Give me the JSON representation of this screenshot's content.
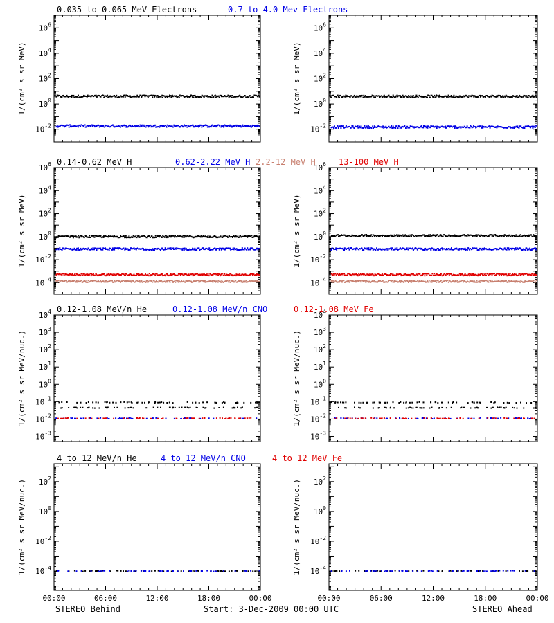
{
  "colors": {
    "black": "#000000",
    "blue": "#0000e6",
    "salmon": "#c88070",
    "red": "#e00000"
  },
  "footer": {
    "left": "STEREO Behind",
    "center": "Start:  3-Dec-2009 00:00 UTC",
    "right": "STEREO Ahead"
  },
  "chart_data": [
    {
      "type": "scatter",
      "scale": "log",
      "titles": [
        {
          "text": "0.035 to 0.065 MeV Electrons",
          "color": "#000000"
        },
        {
          "text": "0.7 to 4.0 Mev Electrons",
          "color": "#0000e6"
        }
      ],
      "ylabel": "1/(cm² s sr MeV)",
      "ylim_exp": [
        -3,
        7
      ],
      "yticks_exp": [
        -2,
        0,
        2,
        4,
        6
      ],
      "panels": [
        {
          "name": "STEREO Behind",
          "series": [
            {
              "color": "#000000",
              "level": 4.0
            },
            {
              "color": "#0000e6",
              "level": 0.018
            }
          ]
        },
        {
          "name": "STEREO Ahead",
          "series": [
            {
              "color": "#000000",
              "level": 4.0
            },
            {
              "color": "#0000e6",
              "level": 0.015
            }
          ]
        }
      ]
    },
    {
      "type": "scatter",
      "scale": "log",
      "titles": [
        {
          "text": "0.14-0.62 MeV H",
          "color": "#000000"
        },
        {
          "text": "0.62-2.22 MeV H",
          "color": "#0000e6"
        },
        {
          "text": "2.2-12 MeV H",
          "color": "#c88070"
        },
        {
          "text": "13-100 MeV H",
          "color": "#e00000"
        }
      ],
      "ylabel": "1/(cm² s sr MeV)",
      "ylim_exp": [
        -5,
        6
      ],
      "yticks_exp": [
        -4,
        -2,
        0,
        2,
        4,
        6
      ],
      "panels": [
        {
          "name": "STEREO Behind",
          "series": [
            {
              "color": "#000000",
              "level": 1.0
            },
            {
              "color": "#0000e6",
              "level": 0.085
            },
            {
              "color": "#c88070",
              "level": 0.00013
            },
            {
              "color": "#e00000",
              "level": 0.0005
            }
          ]
        },
        {
          "name": "STEREO Ahead",
          "series": [
            {
              "color": "#000000",
              "level": 1.2
            },
            {
              "color": "#0000e6",
              "level": 0.085
            },
            {
              "color": "#c88070",
              "level": 0.00013
            },
            {
              "color": "#e00000",
              "level": 0.0005
            }
          ]
        }
      ]
    },
    {
      "type": "scatter",
      "scale": "log",
      "titles": [
        {
          "text": "0.12-1.08 MeV/n He",
          "color": "#000000"
        },
        {
          "text": "0.12-1.08 MeV/n CNO",
          "color": "#0000e6"
        },
        {
          "text": "0.12-1.08 MeV Fe",
          "color": "#e00000"
        }
      ],
      "ylabel": "1/(cm² s sr MeV/nuc.)",
      "ylim_exp": [
        -3.3,
        4
      ],
      "yticks_exp": [
        -3,
        -2,
        -1,
        0,
        1,
        2,
        3,
        4
      ],
      "panels": [
        {
          "name": "STEREO Behind",
          "series": [
            {
              "color": "#000000",
              "level": 0.09
            },
            {
              "color": "#000000",
              "level": 0.045
            },
            {
              "color": "#0000e6",
              "level": 0.011
            },
            {
              "color": "#e00000",
              "level": 0.011
            }
          ]
        },
        {
          "name": "STEREO Ahead",
          "series": [
            {
              "color": "#000000",
              "level": 0.09
            },
            {
              "color": "#000000",
              "level": 0.045
            },
            {
              "color": "#0000e6",
              "level": 0.011
            },
            {
              "color": "#e00000",
              "level": 0.011
            }
          ]
        }
      ]
    },
    {
      "type": "scatter",
      "scale": "log",
      "titles": [
        {
          "text": "4 to 12 MeV/n He",
          "color": "#000000"
        },
        {
          "text": "4 to 12 MeV/n CNO",
          "color": "#0000e6"
        },
        {
          "text": "4 to 12 MeV Fe",
          "color": "#e00000"
        }
      ],
      "ylabel": "1/(cm² s sr MeV/nuc.)",
      "ylim_exp": [
        -5.3,
        3.2
      ],
      "yticks_exp": [
        -4,
        -2,
        0,
        2
      ],
      "panels": [
        {
          "name": "STEREO Behind",
          "series": [
            {
              "color": "#000000",
              "level": 0.0001
            },
            {
              "color": "#0000e6",
              "level": 0.0001
            }
          ]
        },
        {
          "name": "STEREO Ahead",
          "series": [
            {
              "color": "#000000",
              "level": 0.0001
            },
            {
              "color": "#0000e6",
              "level": 0.0001
            }
          ]
        }
      ]
    }
  ],
  "xaxis": {
    "ticks": [
      "00:00",
      "06:00",
      "12:00",
      "18:00",
      "00:00"
    ]
  }
}
